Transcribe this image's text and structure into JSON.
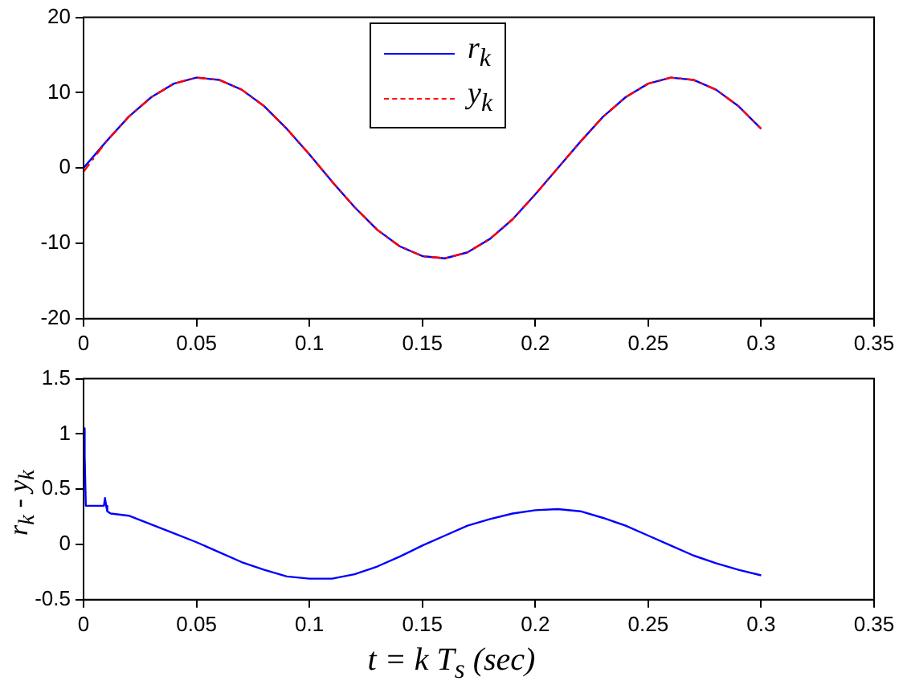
{
  "chart_data": [
    {
      "type": "line",
      "x": [
        0,
        0.01,
        0.02,
        0.03,
        0.04,
        0.05,
        0.06,
        0.07,
        0.08,
        0.09,
        0.1,
        0.11,
        0.12,
        0.13,
        0.14,
        0.15,
        0.16,
        0.17,
        0.18,
        0.19,
        0.2,
        0.21,
        0.22,
        0.23,
        0.24,
        0.25,
        0.26,
        0.27,
        0.28,
        0.29,
        0.3
      ],
      "series": [
        {
          "name": "r$_{k}$",
          "color": "#0000ff",
          "line_style": "solid",
          "values": [
            0,
            3.5,
            6.8,
            9.4,
            11.2,
            12,
            11.7,
            10.4,
            8.2,
            5.2,
            1.8,
            -1.8,
            -5.2,
            -8.2,
            -10.4,
            -11.7,
            -12,
            -11.2,
            -9.4,
            -6.8,
            -3.5,
            0,
            3.5,
            6.8,
            9.4,
            11.2,
            12,
            11.7,
            10.4,
            8.2,
            5.2
          ]
        },
        {
          "name": "y$_{k}$",
          "color": "#ff0000",
          "line_style": "dashed",
          "values": [
            -0.5,
            3.5,
            6.8,
            9.4,
            11.2,
            12,
            11.7,
            10.4,
            8.2,
            5.2,
            1.8,
            -1.8,
            -5.2,
            -8.2,
            -10.4,
            -11.7,
            -12,
            -11.2,
            -9.4,
            -6.8,
            -3.5,
            0,
            3.5,
            6.8,
            9.4,
            11.2,
            12,
            11.7,
            10.4,
            8.2,
            5.2
          ]
        }
      ],
      "xlim": [
        0,
        0.35
      ],
      "xticks": [
        0,
        0.05,
        0.1,
        0.15,
        0.2,
        0.25,
        0.3,
        0.35
      ],
      "ylim": [
        -20,
        20
      ],
      "yticks": [
        -20,
        -10,
        0,
        10,
        20
      ],
      "legend": "top"
    },
    {
      "type": "line",
      "x": [
        0,
        0.0005,
        0.001,
        0.009,
        0.0095,
        0.01,
        0.0105,
        0.012,
        0.02,
        0.03,
        0.04,
        0.05,
        0.06,
        0.07,
        0.08,
        0.09,
        0.1,
        0.11,
        0.12,
        0.13,
        0.14,
        0.15,
        0.16,
        0.17,
        0.18,
        0.19,
        0.2,
        0.21,
        0.22,
        0.23,
        0.24,
        0.25,
        0.26,
        0.27,
        0.28,
        0.29,
        0.3
      ],
      "series": [
        {
          "color": "#0000ff",
          "line_style": "solid",
          "values": [
            1.05,
            0.8,
            0.35,
            0.35,
            0.42,
            0.35,
            0.3,
            0.28,
            0.26,
            0.18,
            0.1,
            0.02,
            -0.07,
            -0.16,
            -0.23,
            -0.29,
            -0.31,
            -0.31,
            -0.27,
            -0.2,
            -0.11,
            -0.01,
            0.08,
            0.17,
            0.23,
            0.28,
            0.31,
            0.32,
            0.3,
            0.24,
            0.17,
            0.08,
            -0.01,
            -0.1,
            -0.17,
            -0.23,
            -0.28
          ]
        }
      ],
      "xlim": [
        0,
        0.35
      ],
      "xticks": [
        0,
        0.05,
        0.1,
        0.15,
        0.2,
        0.25,
        0.3,
        0.35
      ],
      "ylim": [
        -0.5,
        1.5
      ],
      "yticks": [
        -0.5,
        0,
        0.5,
        1,
        1.5
      ],
      "xlabel": "t = k T$_{s}$ (sec)",
      "ylabel": "r$_{k}$ - y$_{k}$"
    }
  ]
}
